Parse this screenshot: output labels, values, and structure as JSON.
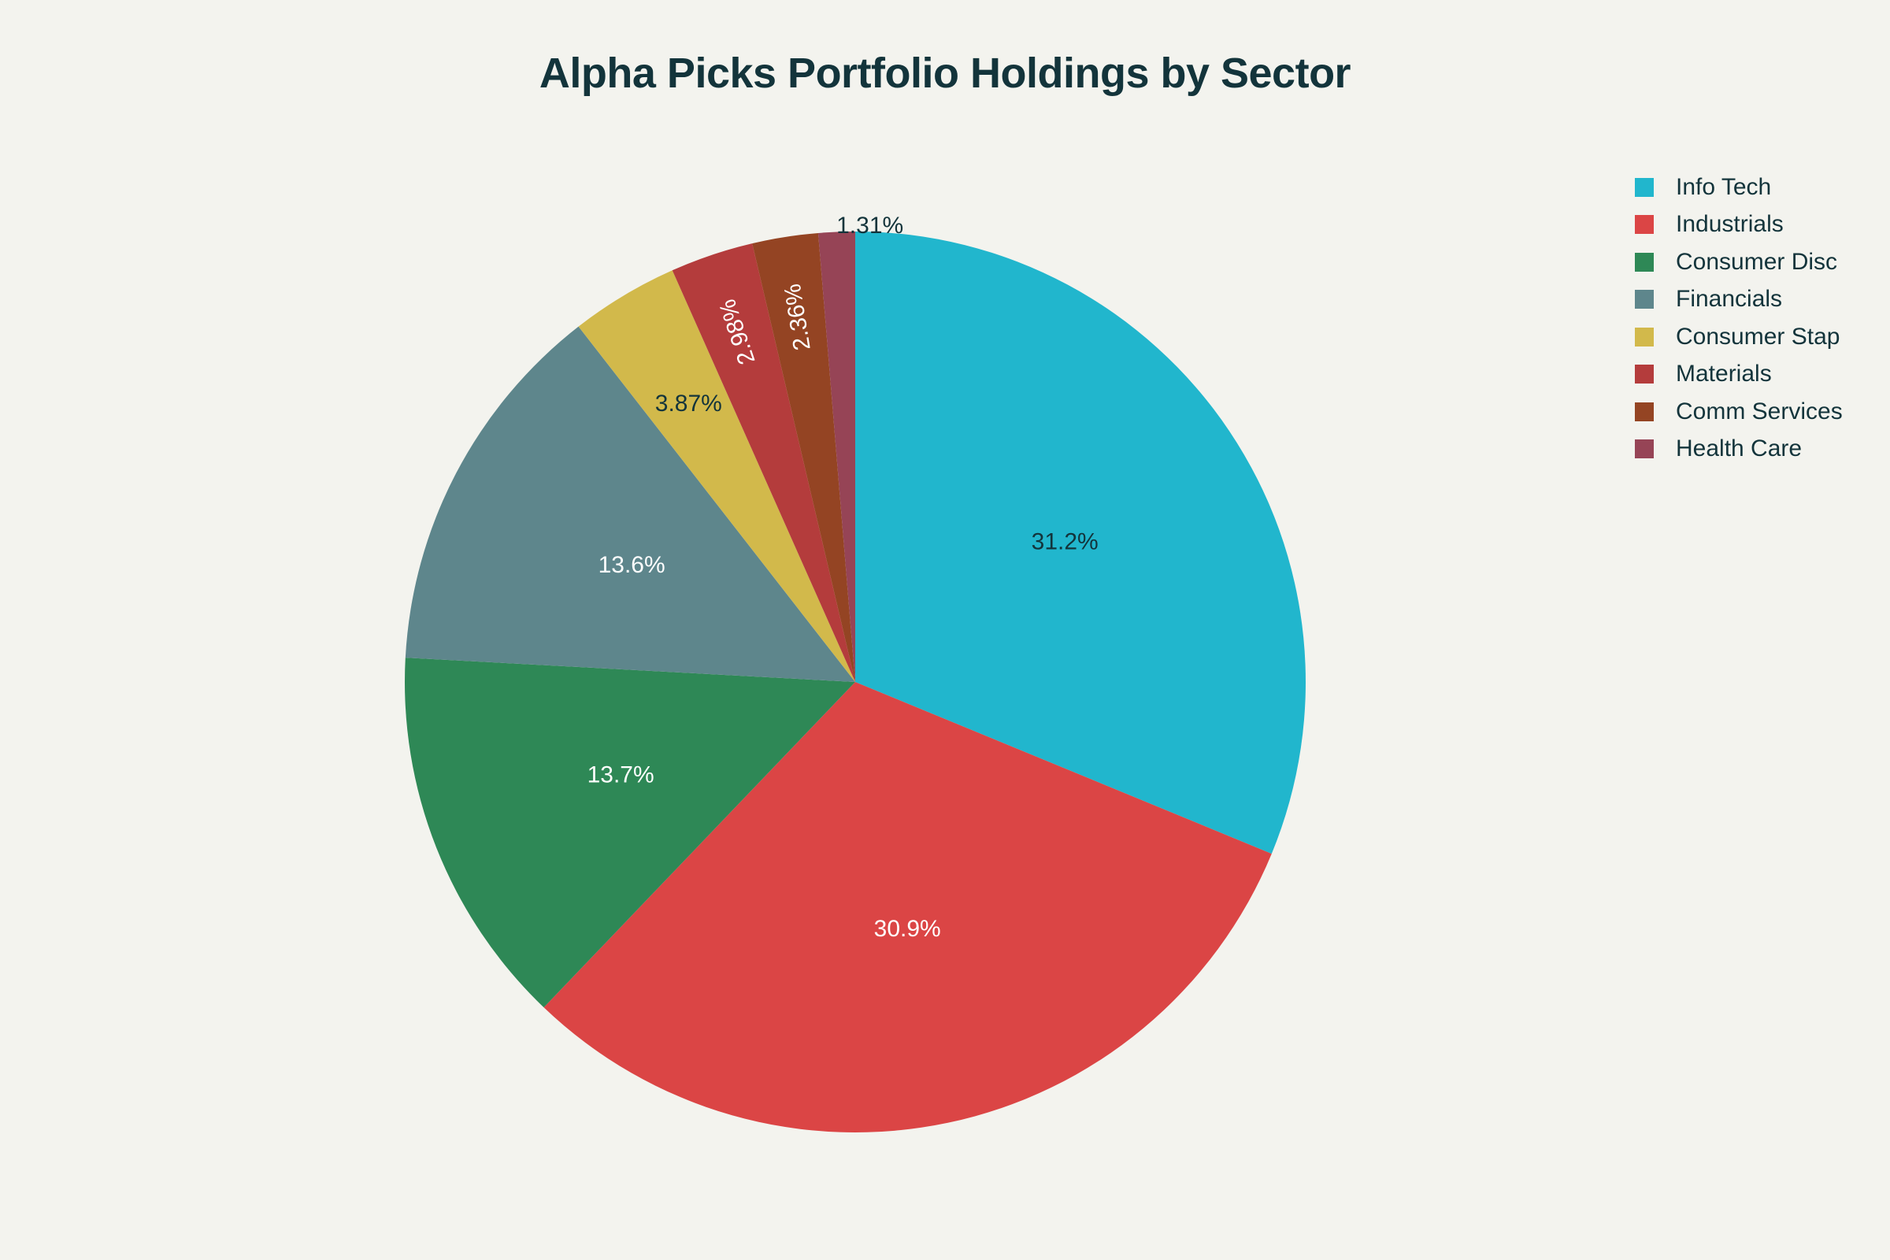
{
  "chart_data": {
    "type": "pie",
    "title": "Alpha Picks Portfolio Holdings by Sector",
    "categories": [
      "Info Tech",
      "Industrials",
      "Consumer Disc",
      "Financials",
      "Consumer Stap",
      "Materials",
      "Comm Services",
      "Health Care"
    ],
    "values": [
      31.2,
      30.9,
      13.7,
      13.6,
      3.87,
      2.98,
      2.36,
      1.31
    ],
    "labels": [
      "31.2%",
      "30.9%",
      "13.7%",
      "13.6%",
      "3.87%",
      "2.98%",
      "2.36%",
      "1.31%"
    ],
    "colors": [
      "#21b6cd",
      "#db4545",
      "#2e8856",
      "#5e868c",
      "#d2b94b",
      "#b43c3c",
      "#944423",
      "#964456"
    ],
    "label_colors": [
      "#13343b",
      "#ffffff",
      "#ffffff",
      "#ffffff",
      "#13343b",
      "#ffffff",
      "#ffffff",
      "#13343b"
    ],
    "direction": "clockwise",
    "start": "top",
    "legend_position": "top-right"
  }
}
